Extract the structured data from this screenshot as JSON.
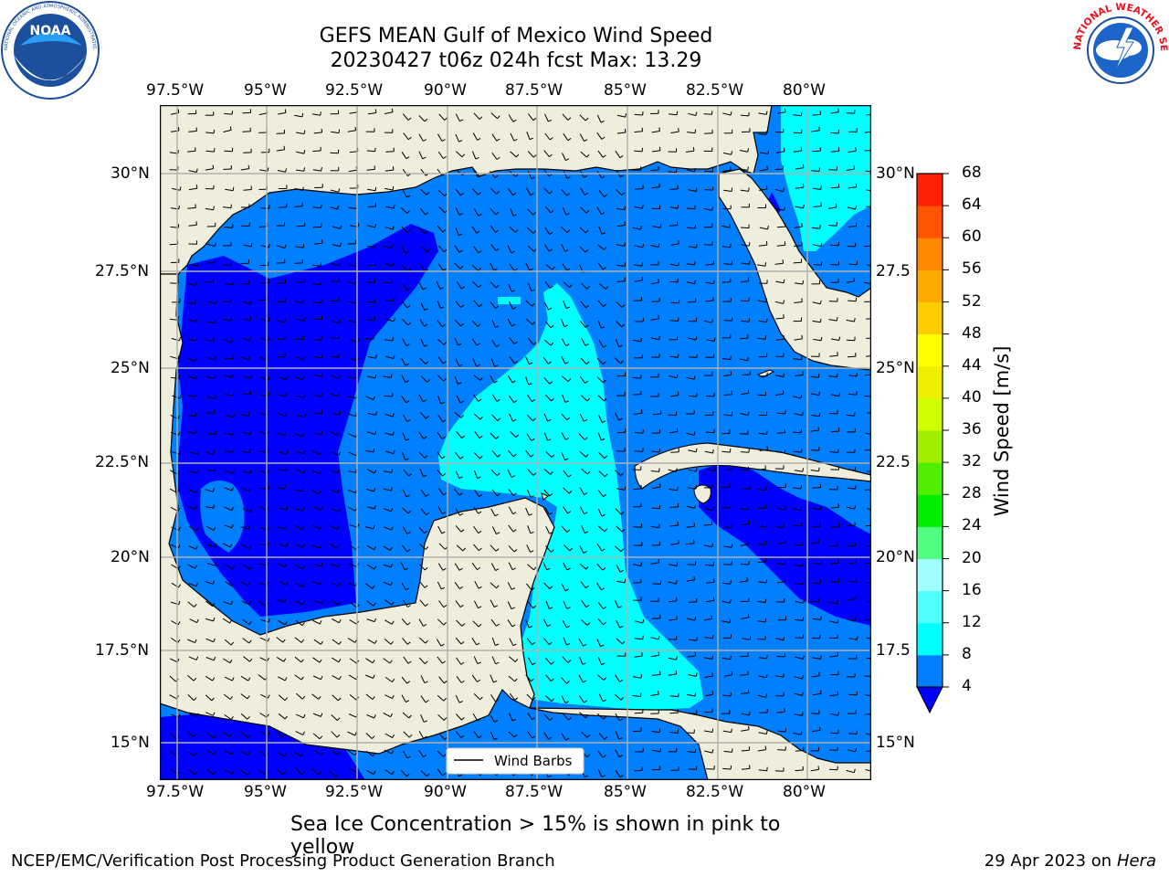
{
  "title": {
    "line1": "GEFS MEAN Gulf of Mexico Wind Speed",
    "line2": "20230427 t06z 024h fcst   Max: 13.29"
  },
  "subtitle": "Sea Ice Concentration > 15% is shown in pink to yellow",
  "footer": {
    "left": "NCEP/EMC/Verification Post Processing Product Generation Branch",
    "right_date": "29 Apr 2023 on ",
    "right_machine": "Hera"
  },
  "logos": {
    "noara_text": "NOAA",
    "noaa_ring": "NATIONAL OCEANIC AND ATMOSPHERIC ADMINISTRATION",
    "noaa_ring_bottom": "U.S. DEPARTMENT OF COMMERCE",
    "nws_ring": "NATIONAL WEATHER SERVICE"
  },
  "map": {
    "lon_labels": [
      "97.5°W",
      "95°W",
      "92.5°W",
      "90°W",
      "87.5°W",
      "85°W",
      "82.5°W",
      "80°W"
    ],
    "lat_labels_left": [
      "30°N",
      "27.5°N",
      "25°N",
      "22.5°N",
      "20°N",
      "17.5°N",
      "15°N"
    ],
    "lat_labels_right": [
      "30°N",
      "27.5",
      "25°N",
      "22.5",
      "20°N",
      "17.5",
      "15°N"
    ],
    "legend_label": "Wind Barbs",
    "colors": {
      "land": "#efeedc",
      "ws_0_4": "#0000ff",
      "ws_4_8": "#0080ff",
      "ws_8_12": "#00ffff",
      "ocean_edge": "#0000ee"
    }
  },
  "colorbar": {
    "label": "Wind Speed [m/s]",
    "ticks": [
      "4",
      "8",
      "12",
      "16",
      "20",
      "24",
      "28",
      "32",
      "36",
      "40",
      "44",
      "48",
      "52",
      "56",
      "60",
      "64",
      "68"
    ],
    "colors": [
      "#0080ff",
      "#00ffff",
      "#50ffff",
      "#a0ffff",
      "#50ff80",
      "#00ee00",
      "#50ee00",
      "#a0ee00",
      "#d0ff00",
      "#eeee00",
      "#ffff00",
      "#ffcc00",
      "#ffaa00",
      "#ff8800",
      "#ff5500",
      "#ff2200",
      "#ff0000"
    ],
    "extend_color": "#0000ff"
  }
}
